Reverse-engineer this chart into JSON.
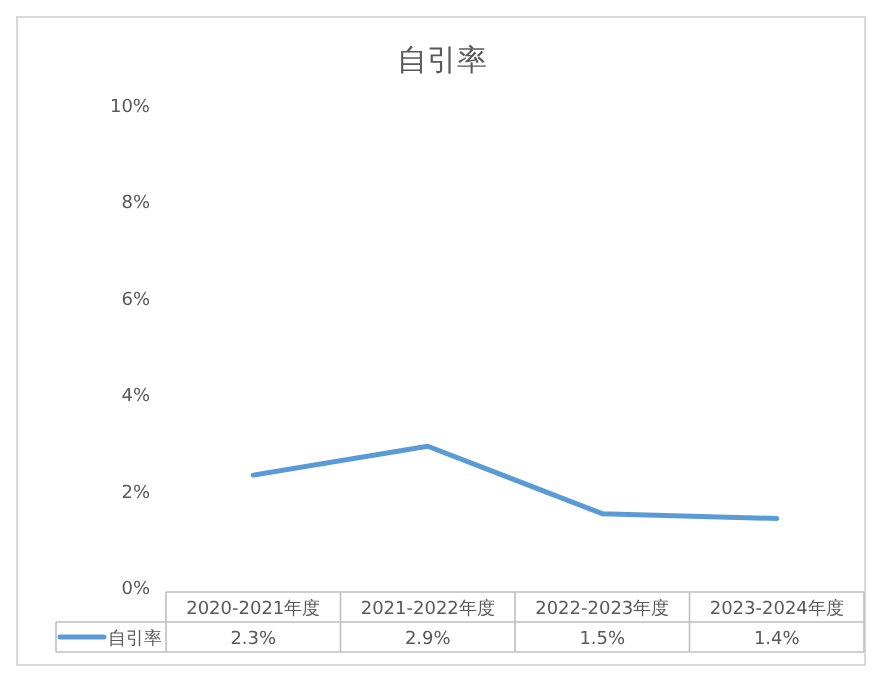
{
  "chart_data": {
    "type": "line",
    "title": "自引率",
    "categories": [
      "2020-2021年度",
      "2021-2022年度",
      "2022-2023年度",
      "2023-2024年度"
    ],
    "series": [
      {
        "name": "自引率",
        "color": "#5b9bd5",
        "values": [
          2.3,
          2.9,
          1.5,
          1.4
        ],
        "value_labels": [
          "2.3%",
          "2.9%",
          "1.5%",
          "1.4%"
        ]
      }
    ],
    "ylim": [
      0,
      10
    ],
    "yticks": [
      {
        "value": 0,
        "label": "0%"
      },
      {
        "value": 2,
        "label": "2%"
      },
      {
        "value": 4,
        "label": "4%"
      },
      {
        "value": 6,
        "label": "6%"
      },
      {
        "value": 8,
        "label": "8%"
      },
      {
        "value": 10,
        "label": "10%"
      }
    ],
    "grid": false,
    "legend": "bottom",
    "marker": "none",
    "line_style": "solid"
  }
}
